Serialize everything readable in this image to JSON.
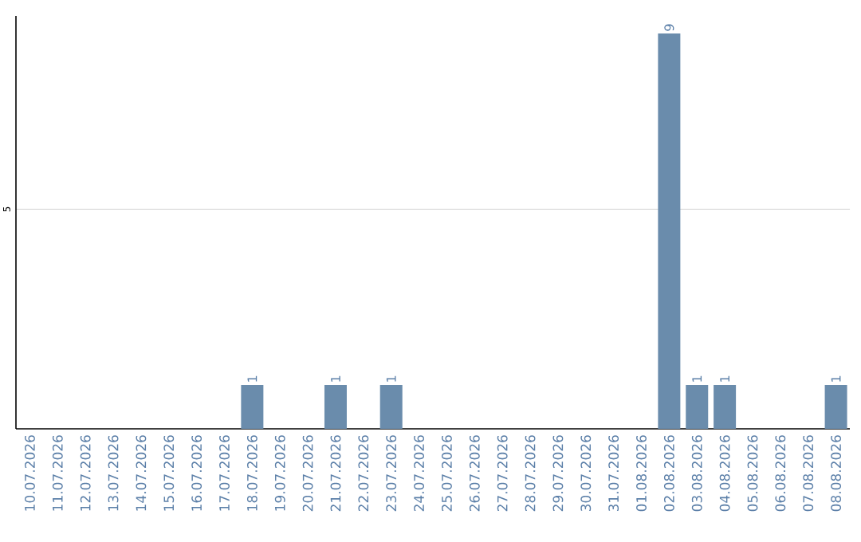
{
  "chart_data": {
    "type": "bar",
    "categories": [
      "10.07.2026",
      "11.07.2026",
      "12.07.2026",
      "13.07.2026",
      "14.07.2026",
      "15.07.2026",
      "16.07.2026",
      "17.07.2026",
      "18.07.2026",
      "19.07.2026",
      "20.07.2026",
      "21.07.2026",
      "22.07.2026",
      "23.07.2026",
      "24.07.2026",
      "25.07.2026",
      "26.07.2026",
      "27.07.2026",
      "28.07.2026",
      "29.07.2026",
      "30.07.2026",
      "31.07.2026",
      "01.08.2026",
      "02.08.2026",
      "03.08.2026",
      "04.08.2026",
      "05.08.2026",
      "06.08.2026",
      "07.08.2026",
      "08.08.2026"
    ],
    "values": [
      0,
      0,
      0,
      0,
      0,
      0,
      0,
      0,
      1,
      0,
      0,
      1,
      0,
      1,
      0,
      0,
      0,
      0,
      0,
      0,
      0,
      0,
      0,
      9,
      1,
      1,
      0,
      0,
      0,
      1
    ],
    "value_labels": [
      null,
      null,
      null,
      null,
      null,
      null,
      null,
      null,
      "1",
      null,
      null,
      "1",
      null,
      "1",
      null,
      null,
      null,
      null,
      null,
      null,
      null,
      null,
      null,
      "9",
      "1",
      "1",
      null,
      null,
      null,
      "1"
    ],
    "color": "#6a8cac",
    "ylim": [
      0,
      9.4
    ],
    "yticks": [
      5
    ],
    "grid": "y"
  }
}
